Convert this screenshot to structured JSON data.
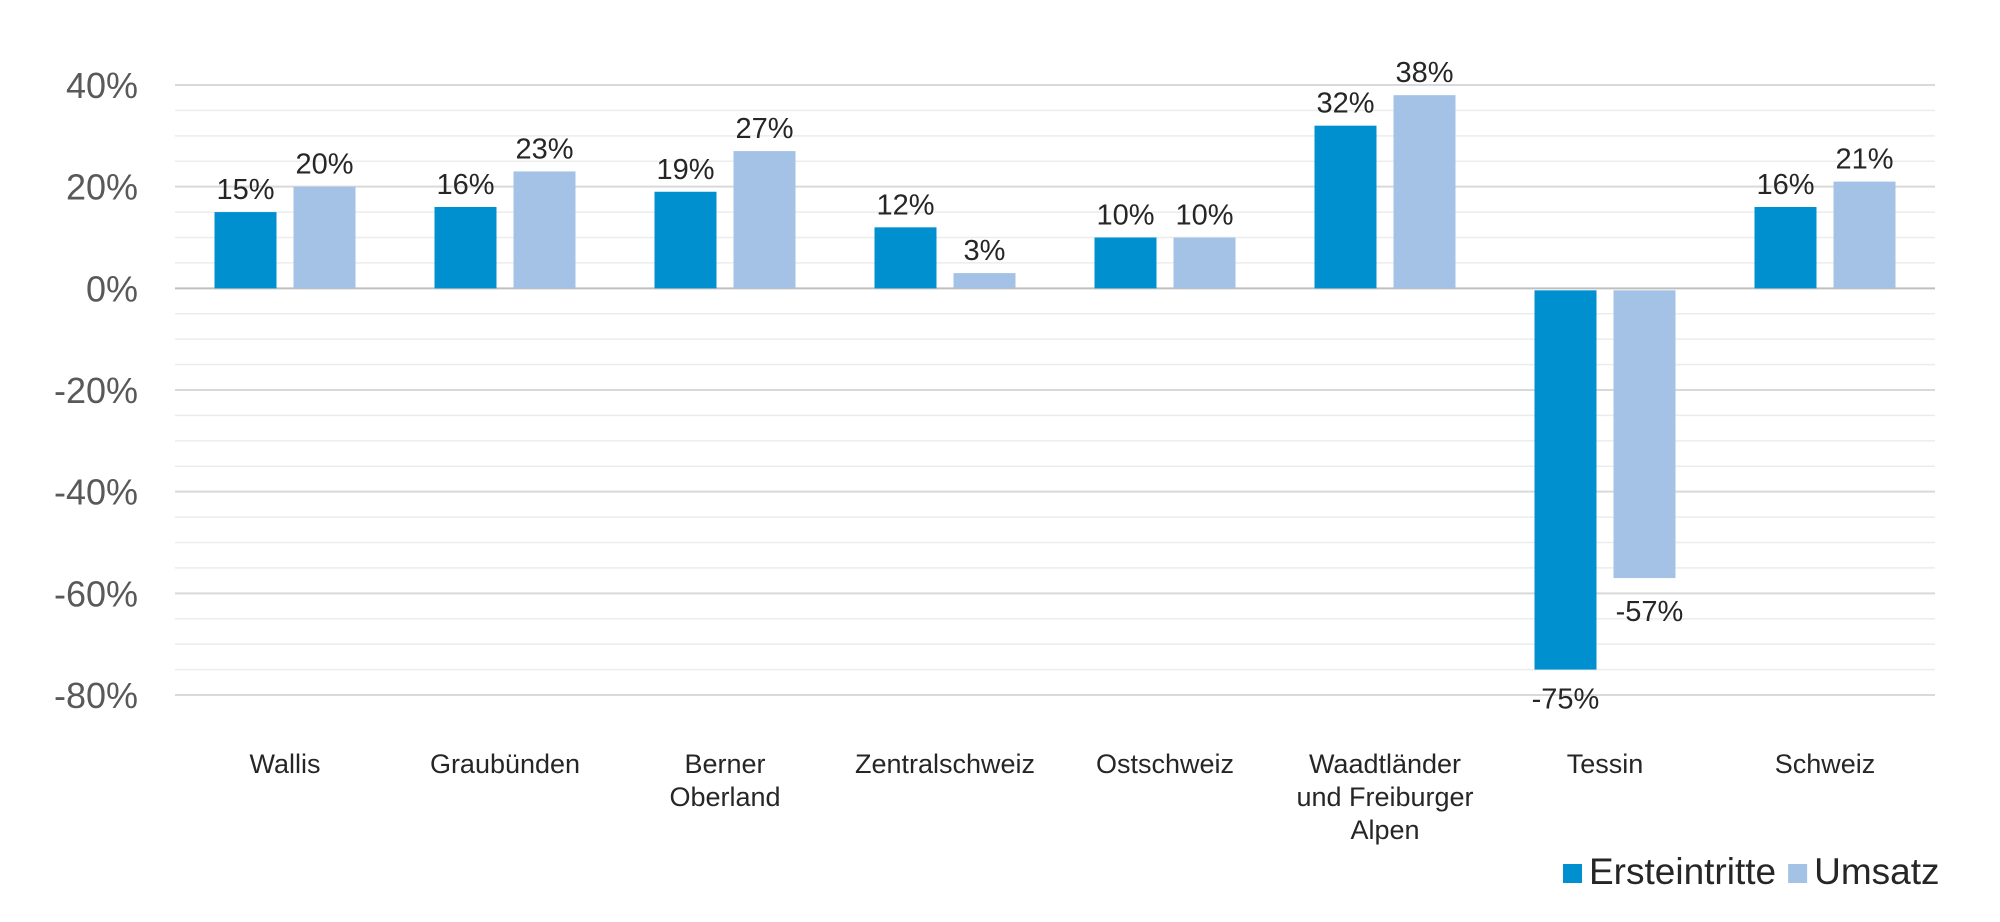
{
  "chart_data": {
    "type": "bar",
    "title": "",
    "xlabel": "",
    "ylabel": "",
    "ylim": [
      -80,
      40
    ],
    "yticks": [
      40,
      20,
      0,
      -20,
      -40,
      -60,
      -80
    ],
    "ytick_labels": [
      "40%",
      "20%",
      "0%",
      "-20%",
      "-40%",
      "-60%",
      "-80%"
    ],
    "gridlines": true,
    "minor_gridlines": true,
    "legend_position": "bottom-right",
    "categories": [
      [
        "Wallis"
      ],
      [
        "Graubünden"
      ],
      [
        "Berner",
        "Oberland"
      ],
      [
        "Zentralschweiz"
      ],
      [
        "Ostschweiz"
      ],
      [
        "Waadtländer",
        "und Freiburger",
        "Alpen"
      ],
      [
        "Tessin"
      ],
      [
        "Schweiz"
      ]
    ],
    "series": [
      {
        "name": "Ersteintritte",
        "color": "#0090D0",
        "values": [
          15,
          16,
          19,
          12,
          10,
          32,
          -75,
          16
        ],
        "labels": [
          "15%",
          "16%",
          "19%",
          "12%",
          "10%",
          "32%",
          "-75%",
          "16%"
        ]
      },
      {
        "name": "Umsatz",
        "color": "#A4C2E6",
        "values": [
          20,
          23,
          27,
          3,
          10,
          38,
          -57,
          21
        ],
        "labels": [
          "20%",
          "23%",
          "27%",
          "3%",
          "10%",
          "38%",
          "-57%",
          "21%"
        ]
      }
    ]
  }
}
